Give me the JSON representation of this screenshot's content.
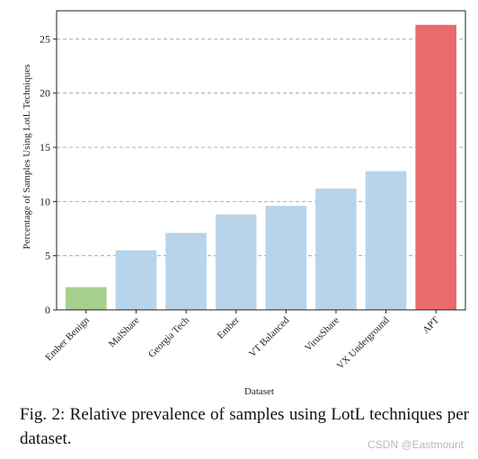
{
  "chart_data": {
    "type": "bar",
    "categories": [
      "Ember Benign",
      "MalShare",
      "Georgia Tech",
      "Ember",
      "VT Balanced",
      "VirusShare",
      "VX Underground",
      "APT"
    ],
    "values": [
      2.1,
      5.5,
      7.1,
      8.8,
      9.6,
      11.2,
      12.8,
      26.3
    ],
    "bar_colors": [
      "#a8d08d",
      "#b8d4ea",
      "#b8d4ea",
      "#b8d4ea",
      "#b8d4ea",
      "#b8d4ea",
      "#b8d4ea",
      "#ea6b6b"
    ],
    "xlabel": "Dataset",
    "ylabel": "Percentage of Samples Using LotL Techniques",
    "ylim": [
      0,
      27.6
    ],
    "yticks": [
      0,
      5,
      10,
      15,
      20,
      25
    ],
    "grid": "horizontal dashed"
  },
  "caption": "Fig. 2: Relative prevalence of samples using LotL techniques per dataset.",
  "watermark": "CSDN @Eastmount"
}
